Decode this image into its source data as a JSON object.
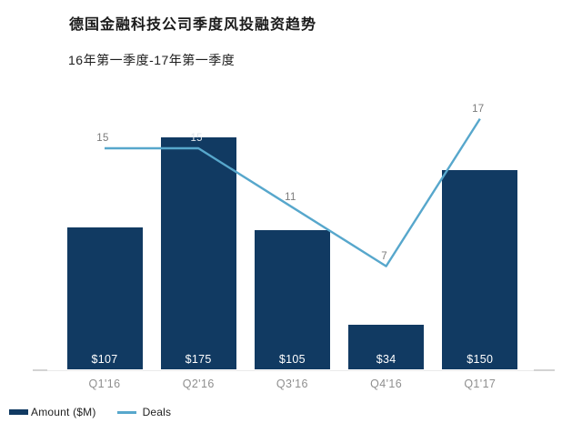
{
  "header": {
    "title": "德国金融科技公司季度风投融资趋势",
    "subtitle": "16年第一季度-17年第一季度"
  },
  "legend": {
    "amount_label": "Amount ($M)",
    "deals_label": "Deals"
  },
  "colors": {
    "bar": "#113a62",
    "line": "#57a7cc",
    "point_label_gray": "#7b7b7b",
    "point_label_on_bar": "#dfe5ea",
    "bar_value_label": "#ffffff",
    "axis_label": "#8f8f8f",
    "axis_line": "#eaeaea",
    "axis_end_dash": "#d3d3d3"
  },
  "chart_data": {
    "type": "bar",
    "subtype": "combo-bar-line",
    "title": "德国金融科技公司季度风投融资趋势",
    "subtitle": "16年第一季度-17年第一季度",
    "xlabel": "",
    "ylabel": "",
    "categories": [
      "Q1'16",
      "Q2'16",
      "Q3'16",
      "Q4'16",
      "Q1'17"
    ],
    "series": [
      {
        "name": "Amount ($M)",
        "type": "bar",
        "values": [
          107,
          175,
          105,
          34,
          150
        ],
        "value_labels": [
          "$107",
          "$175",
          "$105",
          "$34",
          "$150"
        ]
      },
      {
        "name": "Deals",
        "type": "line",
        "values": [
          15,
          15,
          11,
          7,
          17
        ],
        "value_labels": [
          "15",
          "15",
          "11",
          "7",
          "17"
        ]
      }
    ],
    "gridlines": false,
    "y_axis_shown": false,
    "amount_axis_range": [
      0,
      180
    ],
    "deals_axis_range": [
      0,
      18
    ],
    "legend_position": "bottom-left"
  }
}
